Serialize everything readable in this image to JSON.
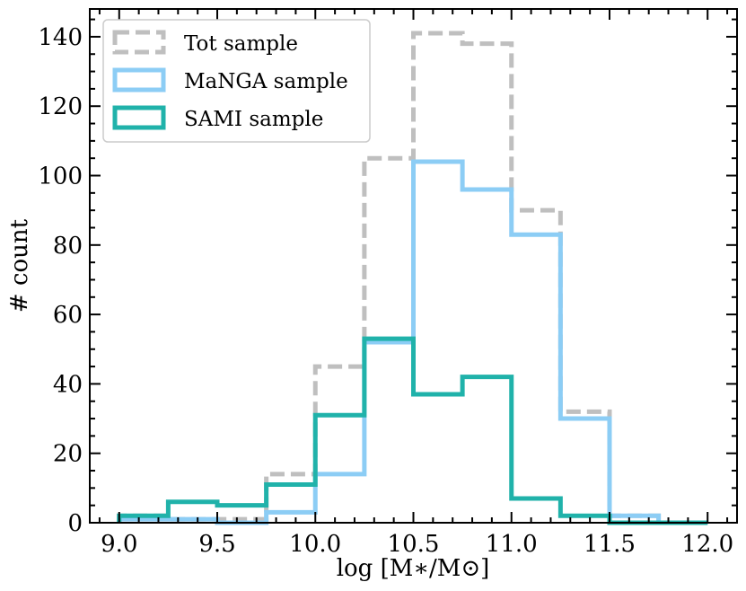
{
  "chart_data": {
    "type": "histogram",
    "xlabel": "log [M∗/M⊙]",
    "ylabel": "# count",
    "xlim": [
      8.85,
      12.15
    ],
    "ylim": [
      0,
      148
    ],
    "xticks": [
      9.0,
      9.5,
      10.0,
      10.5,
      11.0,
      11.5,
      12.0
    ],
    "xtick_labels": [
      "9.0",
      "9.5",
      "10.0",
      "10.5",
      "11.0",
      "11.5",
      "12.0"
    ],
    "yticks": [
      0,
      20,
      40,
      60,
      80,
      100,
      120,
      140
    ],
    "ytick_labels": [
      "0",
      "20",
      "40",
      "60",
      "80",
      "100",
      "120",
      "140"
    ],
    "bin_edges": [
      9.0,
      9.25,
      9.5,
      9.75,
      10.0,
      10.25,
      10.5,
      10.75,
      11.0,
      11.25,
      11.5,
      11.75,
      12.0
    ],
    "legend_position": "top-left",
    "series": [
      {
        "name": "Tot sample",
        "color": "#bfbfbf",
        "style": "dashed",
        "values": [
          2,
          1,
          1,
          14,
          45,
          105,
          141,
          138,
          90,
          32,
          2,
          0
        ]
      },
      {
        "name": "MaNGA sample",
        "color": "#8ccdf5",
        "style": "solid",
        "values": [
          1,
          1,
          0,
          3,
          14,
          52,
          104,
          96,
          83,
          30,
          2,
          0
        ]
      },
      {
        "name": "SAMI sample",
        "color": "#20b2aa",
        "style": "solid",
        "values": [
          2,
          6,
          5,
          11,
          31,
          53,
          37,
          42,
          7,
          2,
          0,
          0
        ]
      }
    ]
  }
}
